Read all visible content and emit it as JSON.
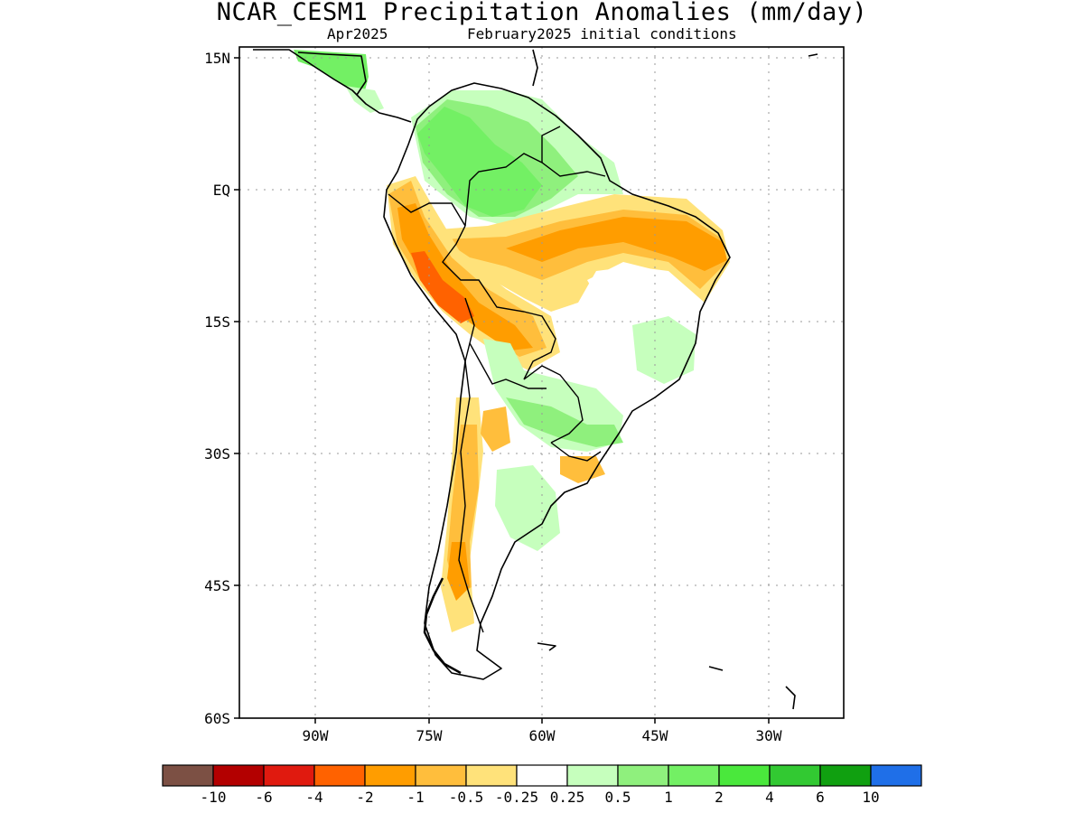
{
  "header": {
    "title": "NCAR_CESM1 Precipitation Anomalies (mm/day)",
    "valid_month": "Apr2025",
    "initial_conditions": "February2025 initial conditions"
  },
  "axes": {
    "lat_labels": [
      "15N",
      "EQ",
      "15S",
      "30S",
      "45S",
      "60S"
    ],
    "lon_labels": [
      "90W",
      "75W",
      "60W",
      "45W",
      "30W"
    ]
  },
  "colorbar": {
    "labels": [
      "-10",
      "-6",
      "-4",
      "-2",
      "-1",
      "-0.5",
      "-0.25",
      "0.25",
      "0.5",
      "1",
      "2",
      "4",
      "6",
      "10"
    ],
    "colors": [
      "#7c5044",
      "#b30000",
      "#e01a0f",
      "#ff6200",
      "#ff9d00",
      "#ffbe3c",
      "#ffe27a",
      "#ffffff",
      "#c6ffbd",
      "#8ff07d",
      "#73f064",
      "#4ae83c",
      "#32c932",
      "#10a010",
      "#1f6fe8"
    ]
  }
}
